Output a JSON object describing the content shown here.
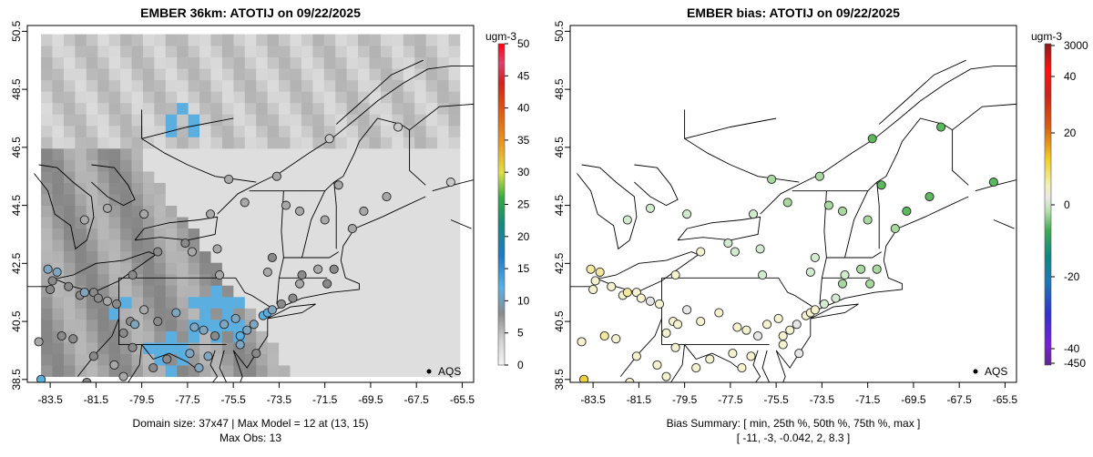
{
  "chart_data": [
    {
      "type": "map-grid",
      "title": "EMBER 36km: ATOTIJ on 09/22/2025",
      "xlim": [
        -84.5,
        -65.0
      ],
      "ylim": [
        38.4,
        50.7
      ],
      "xticks": [
        "-83.5",
        "-81.5",
        "-79.5",
        "-77.5",
        "-75.5",
        "-73.5",
        "-71.5",
        "-69.5",
        "-67.5",
        "-65.5"
      ],
      "yticks": [
        "38.5",
        "40.5",
        "42.5",
        "44.5",
        "46.5",
        "48.5",
        "50.5"
      ],
      "legend_label": "AQS",
      "colorbar": {
        "unit": "ugm-3",
        "min": 0,
        "max": 50,
        "ticks": [
          "0",
          "5",
          "10",
          "15",
          "20",
          "25",
          "30",
          "35",
          "40",
          "45",
          "50"
        ],
        "colors": [
          "#f2f2f2",
          "#d9d9d9",
          "#a6a6a6",
          "#7f7f7f",
          "#5ab4e8",
          "#1f78b4",
          "#0b6b8a",
          "#1a9641",
          "#66bd63",
          "#e7e02a",
          "#fdae61",
          "#e08214",
          "#d7191c",
          "#ff0000"
        ]
      },
      "caption_lines": [
        "Domain size: 37x47 | Max Model = 12 at (13, 15)",
        "Max Obs: 13"
      ],
      "stations": [
        {
          "lon": -83.6,
          "lat": 42.3,
          "value": 8
        },
        {
          "lon": -83.2,
          "lat": 42.2,
          "value": 9
        },
        {
          "lon": -83.4,
          "lat": 41.9,
          "value": 7
        },
        {
          "lon": -83.5,
          "lat": 41.6,
          "value": 6
        },
        {
          "lon": -82.7,
          "lat": 41.7,
          "value": 6
        },
        {
          "lon": -82.2,
          "lat": 41.4,
          "value": 7
        },
        {
          "lon": -82.0,
          "lat": 41.5,
          "value": 8
        },
        {
          "lon": -81.6,
          "lat": 41.5,
          "value": 7
        },
        {
          "lon": -81.4,
          "lat": 41.3,
          "value": 6
        },
        {
          "lon": -81.0,
          "lat": 41.2,
          "value": 5
        },
        {
          "lon": -80.6,
          "lat": 41.1,
          "value": 6
        },
        {
          "lon": -80.0,
          "lat": 40.5,
          "value": 7
        },
        {
          "lon": -79.8,
          "lat": 40.4,
          "value": 8
        },
        {
          "lon": -80.3,
          "lat": 40.1,
          "value": 6
        },
        {
          "lon": -79.4,
          "lat": 40.9,
          "value": 5
        },
        {
          "lon": -78.8,
          "lat": 40.5,
          "value": 6
        },
        {
          "lon": -78.0,
          "lat": 40.8,
          "value": 8
        },
        {
          "lon": -77.2,
          "lat": 40.3,
          "value": 9
        },
        {
          "lon": -76.8,
          "lat": 40.2,
          "value": 8
        },
        {
          "lon": -76.3,
          "lat": 40.0,
          "value": 7
        },
        {
          "lon": -75.9,
          "lat": 40.4,
          "value": 8
        },
        {
          "lon": -75.4,
          "lat": 40.6,
          "value": 9
        },
        {
          "lon": -75.2,
          "lat": 40.0,
          "value": 10
        },
        {
          "lon": -74.9,
          "lat": 40.2,
          "value": 9
        },
        {
          "lon": -74.6,
          "lat": 40.4,
          "value": 8
        },
        {
          "lon": -74.2,
          "lat": 40.7,
          "value": 10
        },
        {
          "lon": -74.0,
          "lat": 40.8,
          "value": 11
        },
        {
          "lon": -73.8,
          "lat": 40.9,
          "value": 9
        },
        {
          "lon": -73.4,
          "lat": 41.1,
          "value": 7
        },
        {
          "lon": -72.9,
          "lat": 41.3,
          "value": 6
        },
        {
          "lon": -72.6,
          "lat": 41.8,
          "value": 5
        },
        {
          "lon": -71.4,
          "lat": 41.8,
          "value": 6
        },
        {
          "lon": -71.1,
          "lat": 42.3,
          "value": 6
        },
        {
          "lon": -71.8,
          "lat": 42.3,
          "value": 5
        },
        {
          "lon": -73.8,
          "lat": 42.7,
          "value": 6
        },
        {
          "lon": -76.2,
          "lat": 43.0,
          "value": 5
        },
        {
          "lon": -77.6,
          "lat": 43.2,
          "value": 6
        },
        {
          "lon": -78.8,
          "lat": 42.9,
          "value": 7
        },
        {
          "lon": -79.9,
          "lat": 42.1,
          "value": 6
        },
        {
          "lon": -82.0,
          "lat": 44.0,
          "value": 4
        },
        {
          "lon": -81.0,
          "lat": 44.4,
          "value": 4
        },
        {
          "lon": -79.4,
          "lat": 44.2,
          "value": 5
        },
        {
          "lon": -76.5,
          "lat": 44.2,
          "value": 5
        },
        {
          "lon": -75.0,
          "lat": 44.6,
          "value": 4
        },
        {
          "lon": -73.2,
          "lat": 44.5,
          "value": 4
        },
        {
          "lon": -72.6,
          "lat": 44.3,
          "value": 4
        },
        {
          "lon": -71.5,
          "lat": 44.0,
          "value": 4
        },
        {
          "lon": -70.3,
          "lat": 43.7,
          "value": 5
        },
        {
          "lon": -70.9,
          "lat": 45.2,
          "value": 4
        },
        {
          "lon": -69.8,
          "lat": 44.3,
          "value": 4
        },
        {
          "lon": -68.8,
          "lat": 44.8,
          "value": 4
        },
        {
          "lon": -71.3,
          "lat": 46.8,
          "value": 3
        },
        {
          "lon": -73.6,
          "lat": 45.5,
          "value": 5
        },
        {
          "lon": -75.7,
          "lat": 45.4,
          "value": 4
        },
        {
          "lon": -77.0,
          "lat": 38.9,
          "value": 8
        },
        {
          "lon": -76.6,
          "lat": 39.3,
          "value": 9
        },
        {
          "lon": -77.4,
          "lat": 39.4,
          "value": 8
        },
        {
          "lon": -78.4,
          "lat": 39.2,
          "value": 6
        },
        {
          "lon": -79.9,
          "lat": 39.6,
          "value": 7
        },
        {
          "lon": -81.6,
          "lat": 39.3,
          "value": 6
        },
        {
          "lon": -82.5,
          "lat": 39.9,
          "value": 6
        },
        {
          "lon": -84.0,
          "lat": 39.8,
          "value": 5
        },
        {
          "lon": -83.0,
          "lat": 40.0,
          "value": 7
        },
        {
          "lon": -80.7,
          "lat": 39.0,
          "value": 5
        },
        {
          "lon": -80.3,
          "lat": 38.6,
          "value": 5
        },
        {
          "lon": -81.9,
          "lat": 38.4,
          "value": 6
        },
        {
          "lon": -83.9,
          "lat": 38.5,
          "value": 13
        },
        {
          "lon": -79.0,
          "lat": 38.9,
          "value": 6
        },
        {
          "lon": -75.2,
          "lat": 39.7,
          "value": 9
        },
        {
          "lon": -74.5,
          "lat": 39.4,
          "value": 7
        },
        {
          "lon": -76.1,
          "lat": 42.1,
          "value": 5
        },
        {
          "lon": -77.3,
          "lat": 42.9,
          "value": 5
        },
        {
          "lon": -74.0,
          "lat": 42.2,
          "value": 5
        },
        {
          "lon": -72.5,
          "lat": 42.1,
          "value": 6
        },
        {
          "lon": -68.3,
          "lat": 47.2,
          "value": 3
        },
        {
          "lon": -66.0,
          "lat": 45.3,
          "value": 3
        }
      ]
    },
    {
      "type": "map-points",
      "title": "EMBER bias: ATOTIJ on 09/22/2025",
      "xlim": [
        -84.5,
        -65.0
      ],
      "ylim": [
        38.4,
        50.7
      ],
      "xticks": [
        "-83.5",
        "-81.5",
        "-79.5",
        "-77.5",
        "-75.5",
        "-73.5",
        "-71.5",
        "-69.5",
        "-67.5",
        "-65.5"
      ],
      "yticks": [
        "38.5",
        "40.5",
        "42.5",
        "44.5",
        "46.5",
        "48.5",
        "50.5"
      ],
      "legend_label": "AQS",
      "colorbar": {
        "unit": "ugm-3",
        "ticks": [
          "3000",
          "40",
          "20",
          "0",
          "-20",
          "-40",
          "-450"
        ],
        "colors": [
          "#e6e6e6",
          "#c7e9c0",
          "#74c476",
          "#1a9850",
          "#006d6f",
          "#1f78b4",
          "#2a2ad0",
          "#6a00d8",
          "#5b2a86"
        ],
        "warm_colors": [
          "#f2f2b0",
          "#f0e442",
          "#e6a817",
          "#d46a12",
          "#c42e1c",
          "#ff1010",
          "#c8254e",
          "#8b1a1a"
        ]
      },
      "caption_lines": [
        "Bias Summary: [ min, 25th %, 50th %, 75th %, max ]",
        "[ -11,   -3,   -0.042,   2,   8.3 ]"
      ],
      "bias_summary": {
        "min": -11,
        "p25": -3,
        "p50": -0.042,
        "p75": 2,
        "max": 8.3
      }
    }
  ]
}
